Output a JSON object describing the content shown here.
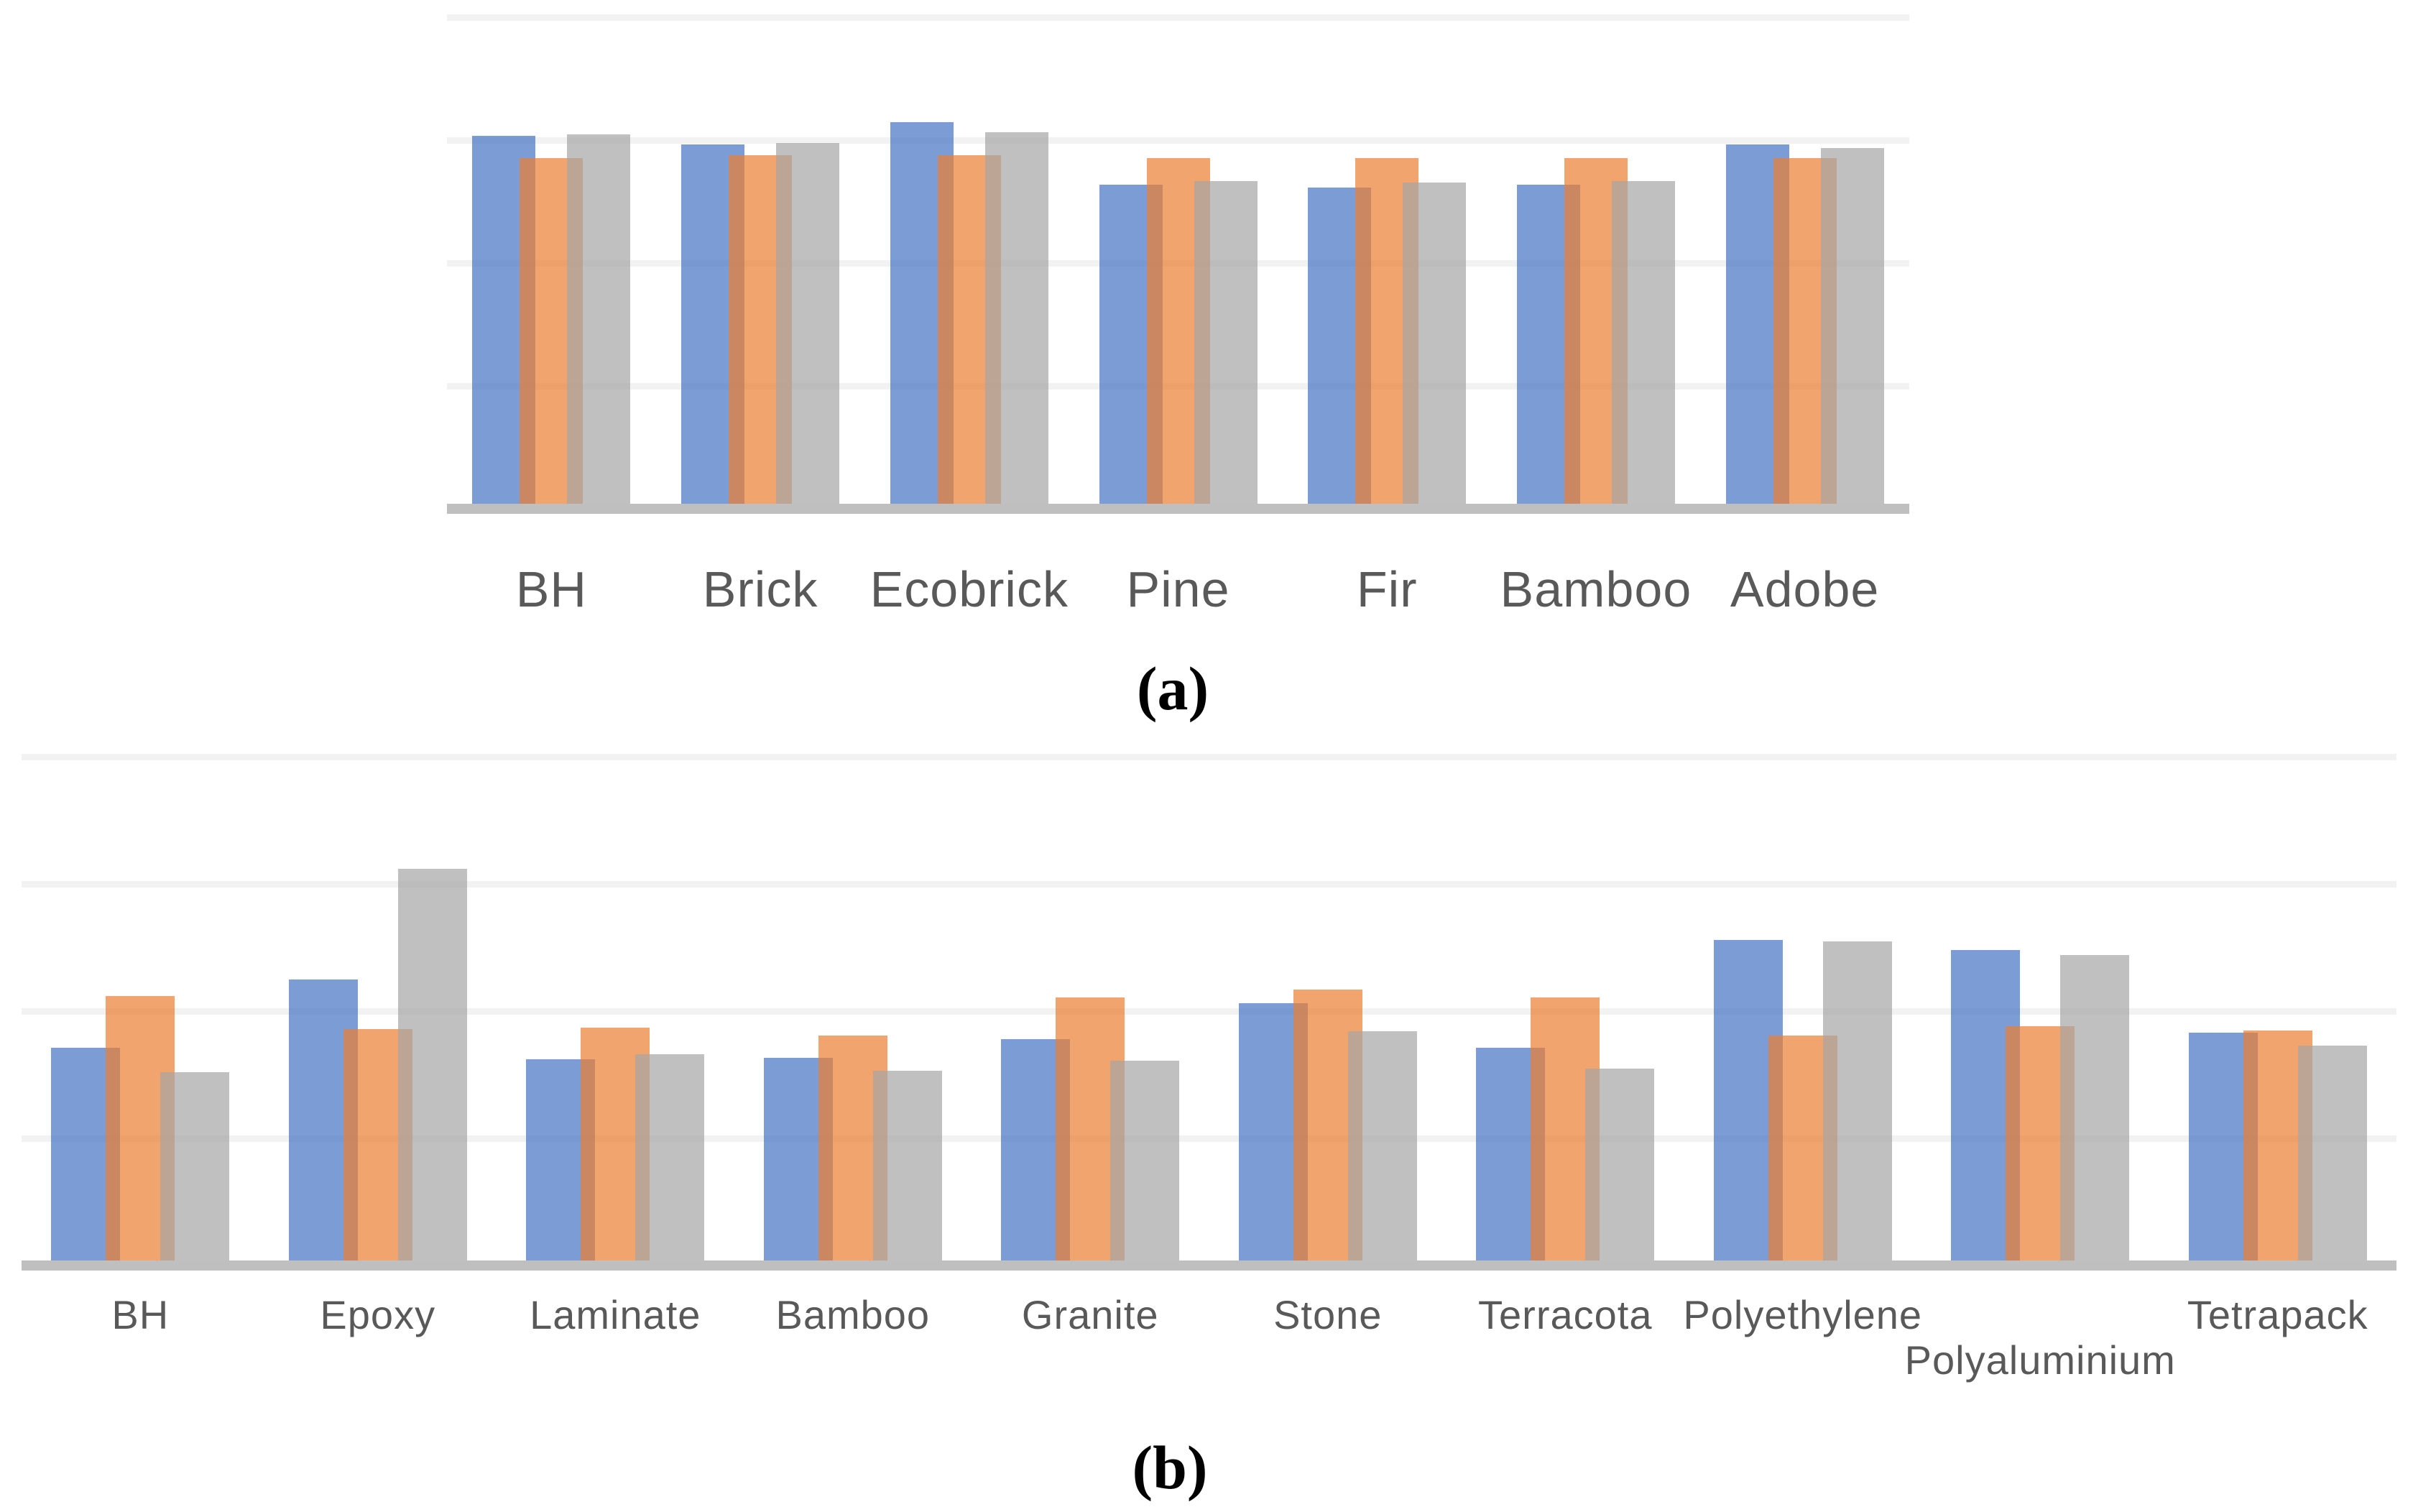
{
  "figure": {
    "background_color": "#FFFFFF",
    "description": "Two unlabeled clustered bar charts stacked vertically, each with three overlapping semi-transparent series (blue, orange, gray), light horizontal gridlines, a gray baseline axis, category labels below the axis, and a serif caption letter beneath each chart.",
    "accent_colors": {
      "series_blue": "#4472C4",
      "series_orange": "#ED7D31",
      "series_gray": "#A5A5A5",
      "gridline": "#F2F2F2",
      "axis_line": "#BFBFBF",
      "category_label_text": "#595959",
      "caption_text": "#000000"
    }
  },
  "chart_data": [
    {
      "id": "a",
      "type": "bar",
      "caption": "(a)",
      "title": "",
      "xlabel": "",
      "ylabel": "",
      "legend": "none",
      "y_axis_tick_labels_visible": false,
      "value_units": "gridline intervals (no numeric axis labels shown)",
      "ylim": [
        0,
        4.25
      ],
      "gridline_interval": 1,
      "gridline_count": 4,
      "bar_opacity": 0.7,
      "series_overlap_pct": 25,
      "categories": [
        "BH",
        "Brick",
        "Ecobrick",
        "Pine",
        "Fir",
        "Bamboo",
        "Adobe"
      ],
      "series": [
        {
          "name": "series-1-blue",
          "color": "#4472C4",
          "values": [
            3.04,
            2.97,
            3.15,
            2.64,
            2.62,
            2.64,
            2.97
          ]
        },
        {
          "name": "series-2-orange",
          "color": "#ED7D31",
          "values": [
            2.86,
            2.88,
            2.88,
            2.86,
            2.86,
            2.86,
            2.86
          ]
        },
        {
          "name": "series-3-gray",
          "color": "#A5A5A5",
          "values": [
            3.05,
            2.98,
            3.07,
            2.67,
            2.66,
            2.67,
            2.94
          ]
        }
      ]
    },
    {
      "id": "b",
      "type": "bar",
      "caption": "(b)",
      "title": "",
      "xlabel": "",
      "ylabel": "",
      "legend": "none",
      "y_axis_tick_labels_visible": false,
      "value_units": "gridline intervals (no numeric axis labels shown)",
      "ylim": [
        0,
        4.25
      ],
      "gridline_interval": 1,
      "gridline_count": 4,
      "bar_opacity": 0.7,
      "series_overlap_pct": 21,
      "categories": [
        "BH",
        "Epoxy",
        "Laminate",
        "Bamboo",
        "Granite",
        "Stone",
        "Terracota",
        "Polyethylene",
        "Polyaluminium",
        "Tetrapack"
      ],
      "series": [
        {
          "name": "series-1-blue",
          "color": "#4472C4",
          "values": [
            1.71,
            2.25,
            1.62,
            1.63,
            1.78,
            2.06,
            1.71,
            2.56,
            2.48,
            1.83
          ]
        },
        {
          "name": "series-2-orange",
          "color": "#ED7D31",
          "values": [
            2.12,
            1.86,
            1.87,
            1.81,
            2.11,
            2.17,
            2.11,
            1.81,
            1.88,
            1.85
          ]
        },
        {
          "name": "series-3-gray",
          "color": "#A5A5A5",
          "values": [
            1.52,
            3.12,
            1.66,
            1.53,
            1.61,
            1.84,
            1.55,
            2.55,
            2.44,
            1.73
          ]
        }
      ]
    }
  ]
}
